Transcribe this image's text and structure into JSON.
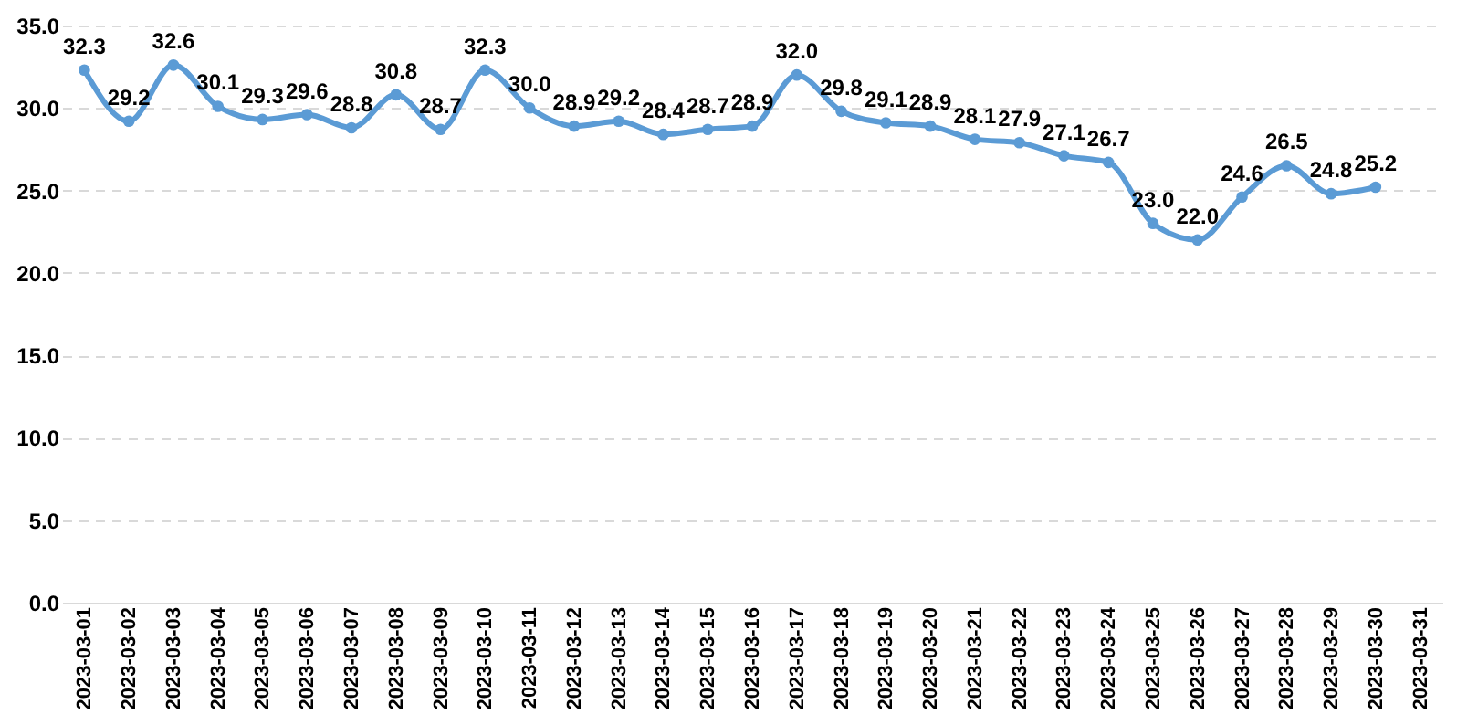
{
  "chart_data": {
    "type": "line",
    "categories": [
      "2023-03-01",
      "2023-03-02",
      "2023-03-03",
      "2023-03-04",
      "2023-03-05",
      "2023-03-06",
      "2023-03-07",
      "2023-03-08",
      "2023-03-09",
      "2023-03-10",
      "2023-03-11",
      "2023-03-12",
      "2023-03-13",
      "2023-03-14",
      "2023-03-15",
      "2023-03-16",
      "2023-03-17",
      "2023-03-18",
      "2023-03-19",
      "2023-03-20",
      "2023-03-21",
      "2023-03-22",
      "2023-03-23",
      "2023-03-24",
      "2023-03-25",
      "2023-03-26",
      "2023-03-27",
      "2023-03-28",
      "2023-03-29",
      "2023-03-30",
      "2023-03-31"
    ],
    "series": [
      {
        "color": "#5b9bd5",
        "values": [
          32.3,
          29.2,
          32.6,
          30.1,
          29.3,
          29.6,
          28.8,
          30.8,
          28.7,
          32.3,
          30.0,
          28.9,
          29.2,
          28.4,
          28.7,
          28.9,
          32.0,
          29.8,
          29.1,
          28.9,
          28.1,
          27.9,
          27.1,
          26.7,
          23.0,
          22.0,
          24.6,
          26.5,
          24.8,
          25.2,
          null
        ],
        "value_labels": [
          "32.3",
          "29.2",
          "32.6",
          "30.1",
          "29.3",
          "29.6",
          "28.8",
          "30.8",
          "28.7",
          "32.3",
          "30.0",
          "28.9",
          "29.2",
          "28.4",
          "28.7",
          "28.9",
          "32.0",
          "29.8",
          "29.1",
          "28.9",
          "28.1",
          "27.9",
          "27.1",
          "26.7",
          "23.0",
          "22.0",
          "24.6",
          "26.5",
          "24.8",
          "25.2",
          null
        ]
      }
    ],
    "ylim": [
      0,
      35
    ],
    "yticks": [
      {
        "value": 0,
        "label": "0.0"
      },
      {
        "value": 5,
        "label": "5.0"
      },
      {
        "value": 10,
        "label": "10.0"
      },
      {
        "value": 15,
        "label": "15.0"
      },
      {
        "value": 20,
        "label": "20.0"
      },
      {
        "value": 25,
        "label": "25.0"
      },
      {
        "value": 30,
        "label": "30.0"
      },
      {
        "value": 35,
        "label": "35.0"
      }
    ],
    "grid": "y",
    "marker": "circle",
    "line_style": "solid"
  }
}
